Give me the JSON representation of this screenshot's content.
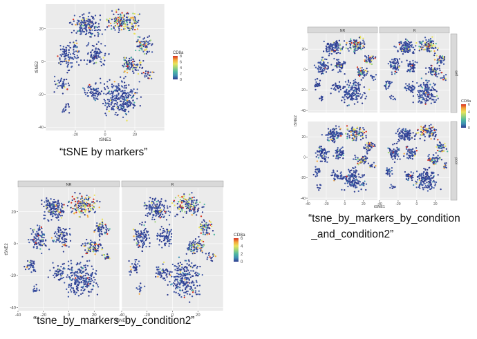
{
  "captions": {
    "fig_a": "“tSNE by markers”",
    "fig_b": "“tsne_by_markers_by_condition2”",
    "fig_c_line1": "“tsne_by_markers_by_condition",
    "fig_c_line2": " _and_condition2”"
  },
  "palette": [
    "#2d3b8f",
    "#3f58a6",
    "#3f8fb3",
    "#4fb8a0",
    "#9bd37a",
    "#e8e35a",
    "#f4a63b",
    "#d7301f"
  ],
  "chart_data": [
    {
      "type": "scatter",
      "id": "tsne_by_markers",
      "xlabel": "tSNE1",
      "ylabel": "tSNE2",
      "xlim": [
        -40,
        40
      ],
      "ylim": [
        -42,
        35
      ],
      "xticks": [
        -20,
        0,
        20
      ],
      "yticks": [
        -40,
        -20,
        0,
        20
      ],
      "grid": true,
      "legend": {
        "title": "CD8a",
        "values": [
          8,
          6,
          4,
          2,
          0
        ],
        "position": "right"
      },
      "facets": []
    },
    {
      "type": "scatter",
      "id": "tsne_by_markers_by_condition2",
      "xlabel": "tSNE1",
      "ylabel": "tSNE2",
      "xlim": [
        -40,
        40
      ],
      "ylim": [
        -42,
        35
      ],
      "xticks": [
        -40,
        -20,
        0,
        20
      ],
      "yticks": [
        -40,
        -20,
        0,
        20
      ],
      "grid": true,
      "legend": {
        "title": "CD8a",
        "values": [
          6,
          4,
          2,
          0
        ],
        "position": "right"
      },
      "facets": [
        "NR",
        "R"
      ]
    },
    {
      "type": "scatter",
      "id": "tsne_by_markers_by_condition_and_condition2",
      "xlabel": "tSNE1",
      "ylabel": "tSNE2",
      "xlim": [
        -40,
        35
      ],
      "ylim": [
        -42,
        35
      ],
      "xticks": [
        -40,
        -20,
        0,
        20
      ],
      "yticks": [
        -40,
        -20,
        0,
        20
      ],
      "grid": true,
      "legend": {
        "title": "CD8a",
        "values": [
          6,
          4,
          2,
          0
        ],
        "position": "right"
      },
      "facets": [
        "NR",
        "R"
      ],
      "row_facets": [
        "self",
        "pool"
      ]
    }
  ]
}
